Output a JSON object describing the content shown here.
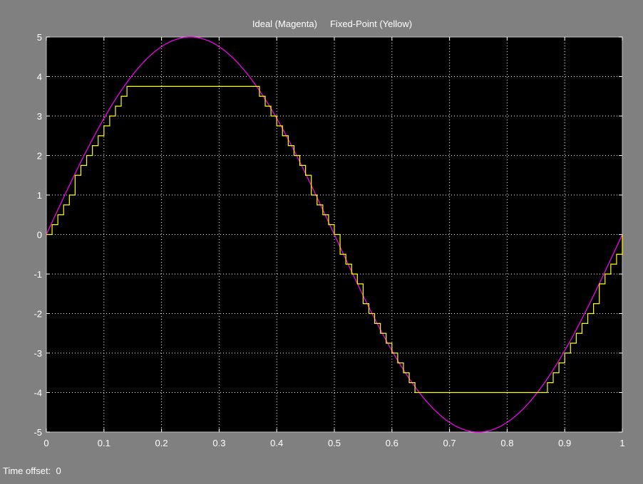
{
  "window": {
    "time_offset_label": "Time offset:",
    "time_offset_value": "0"
  },
  "chart_data": {
    "type": "line",
    "title": "Ideal (Magenta)     Fixed-Point (Yellow)",
    "xlabel": "",
    "ylabel": "",
    "xlim": [
      0,
      1
    ],
    "ylim": [
      -5,
      5
    ],
    "x_ticks": [
      0,
      0.1,
      0.2,
      0.3,
      0.4,
      0.5,
      0.6,
      0.7,
      0.8,
      0.9,
      1
    ],
    "x_tick_labels": [
      "0",
      "0.1",
      "0.2",
      "0.3",
      "0.4",
      "0.5",
      "0.6",
      "0.7",
      "0.8",
      "0.9",
      "1"
    ],
    "y_ticks": [
      5,
      4,
      3,
      2,
      1,
      0,
      -1,
      -2,
      -3,
      -4,
      -5
    ],
    "y_tick_labels": [
      "5",
      "4",
      "3",
      "2",
      "1",
      "0",
      "-1",
      "-2",
      "-3",
      "-4",
      "-5"
    ],
    "grid": true,
    "background": "#000000",
    "series": [
      {
        "function": "5*sin(2*pi*t)",
        "color": "#ff00ff",
        "style": "line"
      },
      {
        "function": "clip(floor(5*sin(2*pi*t)/0.25)*0.25, -4, 3.75)",
        "quantization_step": 0.25,
        "sample_period": 0.01,
        "clip_range": [
          -4,
          3.75
        ],
        "color": "#ffff00",
        "style": "stairs"
      }
    ]
  }
}
